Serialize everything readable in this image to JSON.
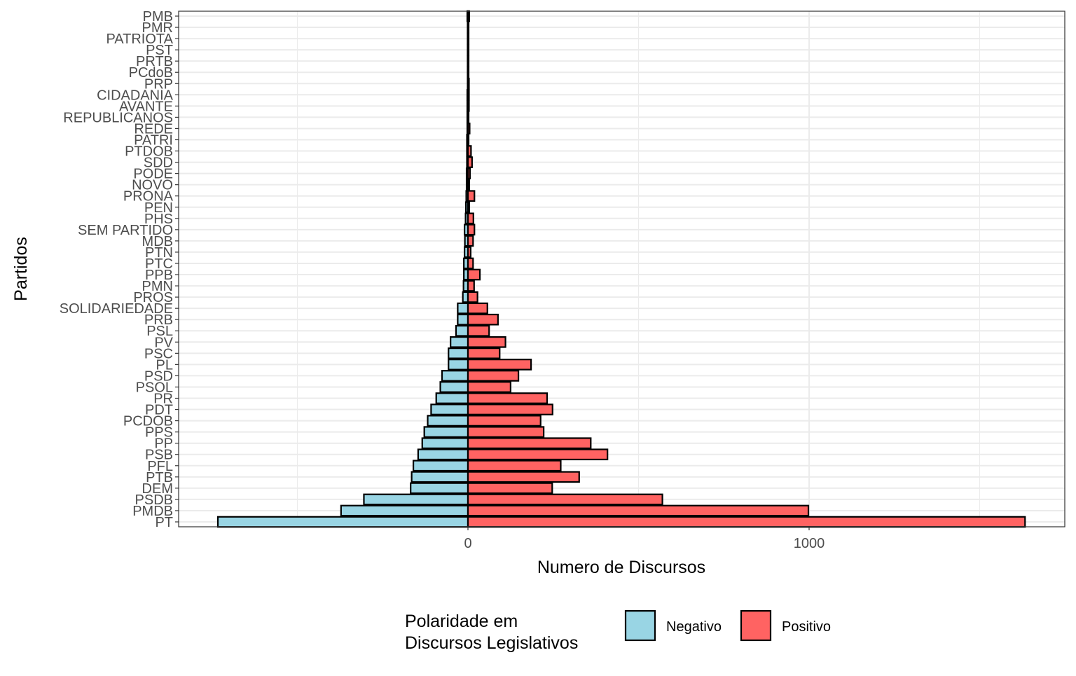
{
  "chart_data": {
    "type": "bar",
    "orientation": "horizontal",
    "stacking": "diverging",
    "xlabel": "Numero de Discursos",
    "ylabel": "Partidos",
    "xlim": [
      -850,
      1750
    ],
    "xticks": [
      0,
      1000
    ],
    "grid": true,
    "legend": {
      "title": "Polaridade em\n Discursos Legislativos",
      "position": "bottom"
    },
    "categories": [
      "PT",
      "PMDB",
      "PSDB",
      "DEM",
      "PTB",
      "PFL",
      "PSB",
      "PP",
      "PPS",
      "PCDOB",
      "PDT",
      "PR",
      "PSOL",
      "PSD",
      "PL",
      "PSC",
      "PV",
      "PSL",
      "PRB",
      "SOLIDARIEDADE",
      "PROS",
      "PMN",
      "PPB",
      "PTC",
      "PTN",
      "MDB",
      "SEM PARTIDO",
      "PHS",
      "PEN",
      "PRONA",
      "NOVO",
      "PODE",
      "SDD",
      "PTDOB",
      "PATRI",
      "REDE",
      "REPUBLICANOS",
      "AVANTE",
      "CIDADANIA",
      "PRP",
      "PCdoB",
      "PRTB",
      "PST",
      "PATRIOTA",
      "PMR",
      "PMB"
    ],
    "series": [
      {
        "name": "Negativo",
        "color": "#99D5E4",
        "values": [
          -733,
          -372,
          -305,
          -168,
          -165,
          -160,
          -146,
          -134,
          -128,
          -118,
          -108,
          -93,
          -81,
          -76,
          -57,
          -57,
          -51,
          -35,
          -30,
          -30,
          -15,
          -13,
          -12,
          -12,
          -10,
          -9,
          -10,
          -7,
          -6,
          -5,
          -4,
          -4,
          -3,
          -3,
          -3,
          -2,
          -2,
          -2,
          -2,
          -1,
          -1,
          -1,
          -1,
          -1,
          -1,
          -2
        ]
      },
      {
        "name": "Positivo",
        "color": "#FF6362",
        "values": [
          1633,
          998,
          570,
          247,
          326,
          272,
          409,
          360,
          222,
          213,
          248,
          232,
          125,
          148,
          185,
          93,
          110,
          62,
          88,
          57,
          28,
          18,
          35,
          15,
          8,
          15,
          19,
          16,
          4,
          19,
          4,
          6,
          12,
          9,
          2,
          5,
          2,
          3,
          3,
          3,
          2,
          2,
          2,
          2,
          2,
          4
        ]
      }
    ]
  }
}
